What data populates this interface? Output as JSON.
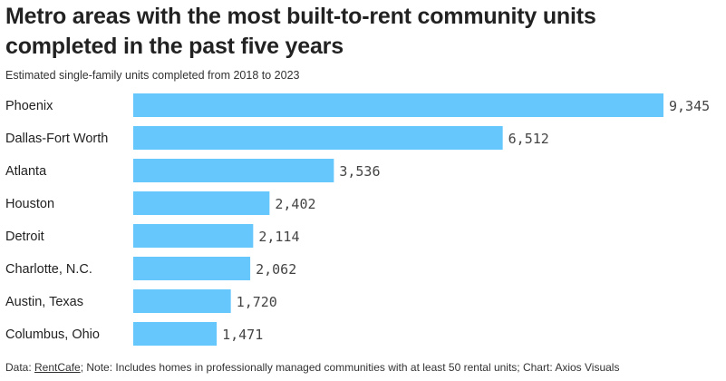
{
  "header": {
    "title": "Metro areas with the most built-to-rent community units completed in the past five years",
    "subtitle": "Estimated single-family units completed from 2018 to 2023"
  },
  "footer": {
    "prefix": "Data: ",
    "source": "RentCafe",
    "note": "; Note: Includes homes in professionally managed communities with at least 50 rental units; Chart: Axios Visuals"
  },
  "chart_data": {
    "type": "bar",
    "orientation": "horizontal",
    "categories": [
      "Phoenix",
      "Dallas-Fort Worth",
      "Atlanta",
      "Houston",
      "Detroit",
      "Charlotte, N.C.",
      "Austin, Texas",
      "Columbus, Ohio"
    ],
    "values": [
      9345,
      6512,
      3536,
      2402,
      2114,
      2062,
      1720,
      1471
    ],
    "value_labels": [
      "9,345",
      "6,512",
      "3,536",
      "2,402",
      "2,114",
      "2,062",
      "1,720",
      "1,471"
    ],
    "xlim": [
      0,
      9345
    ],
    "grid": false,
    "bar_color": "#66c7fd"
  }
}
